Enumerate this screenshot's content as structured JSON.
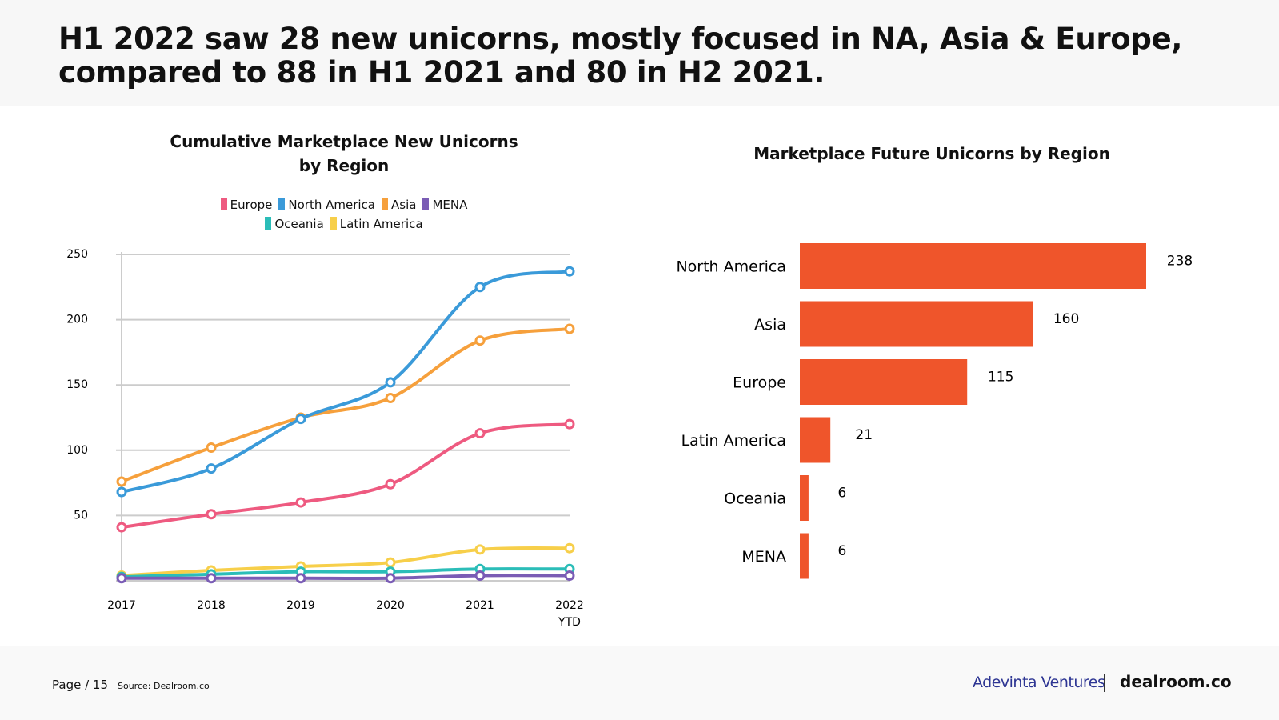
{
  "header": {
    "title": "H1 2022 saw 28 new unicorns, mostly focused in NA, Asia & Europe, compared to 88 in H1 2021 and 80 in H2 2021."
  },
  "footer": {
    "page": "Page / 15",
    "source": "Source: Dealroom.co",
    "brand_left": "Adevinta Ventures",
    "brand_right": "dealroom.co"
  },
  "chart_data": [
    {
      "type": "line",
      "title": "Cumulative Marketplace New Unicorns by Region",
      "title_lines": [
        "Cumulative Marketplace New Unicorns",
        "by Region"
      ],
      "x": [
        "2017",
        "2018",
        "2019",
        "2020",
        "2021",
        "2022 YTD"
      ],
      "yticks": [
        50,
        100,
        150,
        200,
        250
      ],
      "ylim": [
        0,
        250
      ],
      "grid": true,
      "legend": "top",
      "series": [
        {
          "name": "Europe",
          "color": "#ee5a80",
          "values": [
            41,
            51,
            60,
            74,
            113,
            120
          ]
        },
        {
          "name": "North America",
          "color": "#3a9ad9",
          "values": [
            68,
            86,
            124,
            152,
            225,
            237
          ]
        },
        {
          "name": "Asia",
          "color": "#f6a03c",
          "values": [
            76,
            102,
            125,
            140,
            184,
            193
          ]
        },
        {
          "name": "MENA",
          "color": "#7a5cb5",
          "values": [
            2,
            2,
            2,
            2,
            4,
            4
          ]
        },
        {
          "name": "Oceania",
          "color": "#2bbdb8",
          "values": [
            3,
            5,
            7,
            7,
            9,
            9
          ]
        },
        {
          "name": "Latin America",
          "color": "#f7cf4a",
          "values": [
            4,
            8,
            11,
            14,
            24,
            25
          ]
        }
      ]
    },
    {
      "type": "bar",
      "orientation": "horizontal",
      "title": "Marketplace Future Unicorns by Region",
      "color": "#ef552b",
      "categories": [
        "North America",
        "Asia",
        "Europe",
        "Latin America",
        "Oceania",
        "MENA"
      ],
      "values": [
        238,
        160,
        115,
        21,
        6,
        6
      ]
    }
  ]
}
